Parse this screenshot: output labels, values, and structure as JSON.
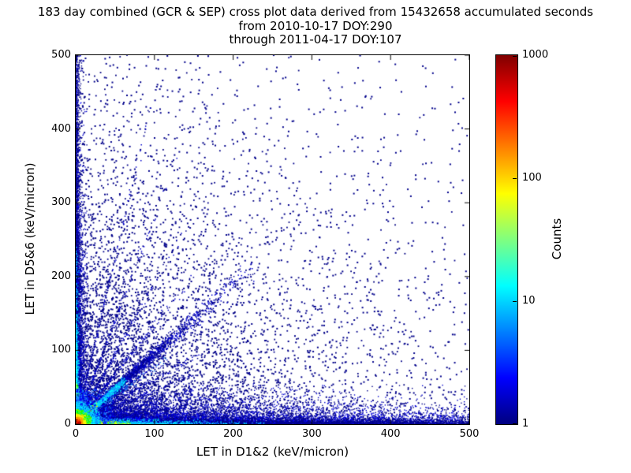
{
  "chart_data": {
    "type": "scatter",
    "title": "183 day combined (GCR & SEP) cross plot data derived from 15432658 accumulated seconds",
    "subtitle1": "from 2010-10-17 DOY:290",
    "subtitle2": "through 2011-04-17 DOY:107",
    "xlabel": "LET in D1&2 (keV/micron)",
    "ylabel": "LET in D5&6 (keV/micron)",
    "xlim": [
      0,
      500
    ],
    "ylim": [
      0,
      500
    ],
    "xticks": [
      0,
      100,
      200,
      300,
      400,
      500
    ],
    "yticks": [
      0,
      100,
      200,
      300,
      400,
      500
    ],
    "grid": false,
    "colorbar": {
      "label": "Counts",
      "scale": "log",
      "min": 1,
      "max": 1000,
      "ticks": [
        1,
        10,
        100,
        1000
      ],
      "colormap": "jet",
      "colormap_stops": [
        {
          "p": 0.0,
          "c": "#000080"
        },
        {
          "p": 0.125,
          "c": "#0000ff"
        },
        {
          "p": 0.375,
          "c": "#00ffff"
        },
        {
          "p": 0.625,
          "c": "#ffff00"
        },
        {
          "p": 0.875,
          "c": "#ff0000"
        },
        {
          "p": 1.0,
          "c": "#800000"
        }
      ]
    },
    "point_color_low": "#00008b",
    "seed": 42,
    "regions": [
      {
        "name": "field-wide",
        "n": 2600,
        "size": 2,
        "colors": [
          "#00008b"
        ],
        "x": {
          "type": "exp",
          "scale": 260,
          "max": 500
        },
        "y": {
          "type": "exp",
          "scale": 260,
          "max": 500
        }
      },
      {
        "name": "field-mid",
        "n": 3200,
        "size": 1.8,
        "colors": [
          "#00008b",
          "#000080"
        ],
        "x": {
          "type": "exp",
          "scale": 115,
          "max": 500
        },
        "y": {
          "type": "exp",
          "scale": 115,
          "max": 500
        }
      },
      {
        "name": "bottom-band",
        "n": 7000,
        "size": 1.4,
        "colors": [
          "#00008b",
          "#0000cd"
        ],
        "x": {
          "type": "exp",
          "scale": 230,
          "max": 500
        },
        "y": {
          "type": "exp",
          "scale": 13,
          "max": 55
        }
      },
      {
        "name": "bottom-line",
        "n": 5000,
        "size": 1.3,
        "colors": [
          "#00008b",
          "#0000ff"
        ],
        "x": {
          "type": "exp",
          "scale": 260,
          "max": 500
        },
        "y": {
          "type": "exp",
          "scale": 4,
          "max": 18
        }
      },
      {
        "name": "bottom-far",
        "n": 1500,
        "size": 1.4,
        "colors": [
          "#00008b"
        ],
        "x": {
          "type": "uniform",
          "min": 100,
          "max": 500
        },
        "y": {
          "type": "exp",
          "scale": 3,
          "max": 10
        }
      },
      {
        "name": "left-band",
        "n": 4200,
        "size": 1.4,
        "colors": [
          "#00008b",
          "#0000cd"
        ],
        "x": {
          "type": "exp",
          "scale": 4,
          "max": 16
        },
        "y": {
          "type": "exp",
          "scale": 110,
          "max": 500
        }
      },
      {
        "name": "left-line",
        "n": 2600,
        "size": 1.3,
        "colors": [
          "#00008b",
          "#0000ff"
        ],
        "x": {
          "type": "exp",
          "scale": 1.6,
          "max": 7
        },
        "y": {
          "type": "exp",
          "scale": 170,
          "max": 500
        }
      },
      {
        "name": "left-far",
        "n": 900,
        "size": 1.4,
        "colors": [
          "#00008b"
        ],
        "x": {
          "type": "exp",
          "scale": 2.5,
          "max": 8
        },
        "y": {
          "type": "uniform",
          "min": 100,
          "max": 500
        }
      },
      {
        "name": "ray-a",
        "n": 400,
        "size": 1.5,
        "colors": [
          "#00008b",
          "#0000cd"
        ],
        "slope": 0.6,
        "jitter": 2.5,
        "t": {
          "scale": 45,
          "max": 170
        }
      },
      {
        "name": "ray-b",
        "n": 380,
        "size": 1.5,
        "colors": [
          "#00008b",
          "#0000cd"
        ],
        "slope": 0.45,
        "jitter": 2.5,
        "t": {
          "scale": 45,
          "max": 170
        }
      },
      {
        "name": "ray-c",
        "n": 360,
        "size": 1.5,
        "colors": [
          "#00008b",
          "#0000cd"
        ],
        "slope": 0.3,
        "jitter": 2.2,
        "t": {
          "scale": 45,
          "max": 170
        }
      },
      {
        "name": "ray-d",
        "n": 340,
        "size": 1.5,
        "colors": [
          "#00008b",
          "#0000cd"
        ],
        "slope": 0.17,
        "jitter": 2,
        "t": {
          "scale": 45,
          "max": 170
        }
      },
      {
        "name": "ray-e",
        "n": 340,
        "size": 1.5,
        "colors": [
          "#00008b",
          "#0000cd"
        ],
        "slope": 1.35,
        "jitter": 2.5,
        "t": {
          "scale": 40,
          "max": 150
        }
      },
      {
        "name": "ray-f",
        "n": 320,
        "size": 1.5,
        "colors": [
          "#00008b",
          "#0000cd"
        ],
        "slope": 1.9,
        "jitter": 2.5,
        "t": {
          "scale": 38,
          "max": 140
        }
      },
      {
        "name": "ray-g",
        "n": 300,
        "size": 1.5,
        "colors": [
          "#00008b",
          "#0000cd"
        ],
        "slope": 2.8,
        "jitter": 2.2,
        "t": {
          "scale": 34,
          "max": 130
        }
      },
      {
        "name": "ray-h",
        "n": 280,
        "size": 1.5,
        "colors": [
          "#00008b",
          "#0000cd"
        ],
        "slope": 4.5,
        "jitter": 2,
        "t": {
          "scale": 30,
          "max": 110
        }
      },
      {
        "name": "diag-second",
        "n": 900,
        "size": 1.4,
        "colors": [
          "#0000cd",
          "#1e90ff",
          "#00008b"
        ],
        "slope": 0.78,
        "jitter": 3,
        "t": {
          "scale": 35,
          "max": 120
        }
      },
      {
        "name": "diag-tail",
        "n": 2000,
        "size": 1.5,
        "colors": [
          "#00008b",
          "#0000cd"
        ],
        "slope": 0.95,
        "jitter": 6,
        "t": {
          "scale": 55,
          "min": 30,
          "max": 230
        }
      },
      {
        "name": "diag-cyan",
        "n": 1500,
        "size": 1.4,
        "colors": [
          "#00ffff",
          "#1e90ff",
          "#00bfff"
        ],
        "slope": 0.95,
        "jitter": 2.2,
        "t": {
          "scale": 26,
          "min": 10,
          "max": 62
        }
      },
      {
        "name": "diag-hot",
        "n": 900,
        "size": 1.4,
        "colors": [
          "#00ff00",
          "#adff2f",
          "#ffff00",
          "#00ffff"
        ],
        "slope": 0.95,
        "jitter": 1.6,
        "t": {
          "scale": 12,
          "max": 26
        }
      },
      {
        "name": "bottom-cyan",
        "n": 1600,
        "size": 1.3,
        "colors": [
          "#00bfff",
          "#00ffff",
          "#1e90ff"
        ],
        "x": {
          "type": "exp",
          "scale": 55,
          "max": 240
        },
        "y": {
          "type": "exp",
          "scale": 2,
          "max": 8
        }
      },
      {
        "name": "bottom-warm",
        "n": 1100,
        "size": 1.3,
        "colors": [
          "#00ff00",
          "#7fff00",
          "#ffff00"
        ],
        "x": {
          "type": "exp",
          "scale": 16,
          "max": 70
        },
        "y": {
          "type": "exp",
          "scale": 1.3,
          "max": 5
        }
      },
      {
        "name": "left-cyan",
        "n": 1100,
        "size": 1.3,
        "colors": [
          "#00bfff",
          "#00ffff"
        ],
        "x": {
          "type": "exp",
          "scale": 1.4,
          "max": 5
        },
        "y": {
          "type": "exp",
          "scale": 55,
          "max": 240
        }
      },
      {
        "name": "left-warm",
        "n": 500,
        "size": 1.3,
        "colors": [
          "#00ff00",
          "#adff2f"
        ],
        "x": {
          "type": "exp",
          "scale": 1.1,
          "max": 4
        },
        "y": {
          "type": "exp",
          "scale": 14,
          "max": 60
        }
      },
      {
        "name": "core-blue-halo",
        "n": 1700,
        "size": 1.4,
        "colors": [
          "#0000ff",
          "#1e90ff"
        ],
        "x": {
          "type": "exp",
          "scale": 16,
          "max": 48
        },
        "y": {
          "type": "exp",
          "scale": 16,
          "max": 48
        }
      },
      {
        "name": "core-cyan",
        "n": 1300,
        "size": 1.4,
        "colors": [
          "#00ffff",
          "#00bfff"
        ],
        "x": {
          "type": "exp",
          "scale": 10,
          "max": 30
        },
        "y": {
          "type": "exp",
          "scale": 10,
          "max": 30
        }
      },
      {
        "name": "core-green",
        "n": 900,
        "size": 1.4,
        "colors": [
          "#00ff00",
          "#7cfc00"
        ],
        "x": {
          "type": "exp",
          "scale": 6.5,
          "max": 20
        },
        "y": {
          "type": "exp",
          "scale": 6.5,
          "max": 20
        }
      },
      {
        "name": "core-yellow",
        "n": 700,
        "size": 1.4,
        "colors": [
          "#ffff00",
          "#ffd700"
        ],
        "x": {
          "type": "exp",
          "scale": 4.5,
          "max": 13
        },
        "y": {
          "type": "exp",
          "scale": 4.5,
          "max": 13
        }
      },
      {
        "name": "core-orange",
        "n": 550,
        "size": 1.4,
        "colors": [
          "#ff8c00",
          "#ffa500"
        ],
        "x": {
          "type": "exp",
          "scale": 3,
          "max": 9
        },
        "y": {
          "type": "exp",
          "scale": 3,
          "max": 9
        }
      },
      {
        "name": "core-red",
        "n": 500,
        "size": 1.5,
        "colors": [
          "#ff0000",
          "#ff4500",
          "#8b0000"
        ],
        "x": {
          "type": "exp",
          "scale": 1.8,
          "max": 6
        },
        "y": {
          "type": "exp",
          "scale": 1.8,
          "max": 6
        }
      }
    ]
  }
}
